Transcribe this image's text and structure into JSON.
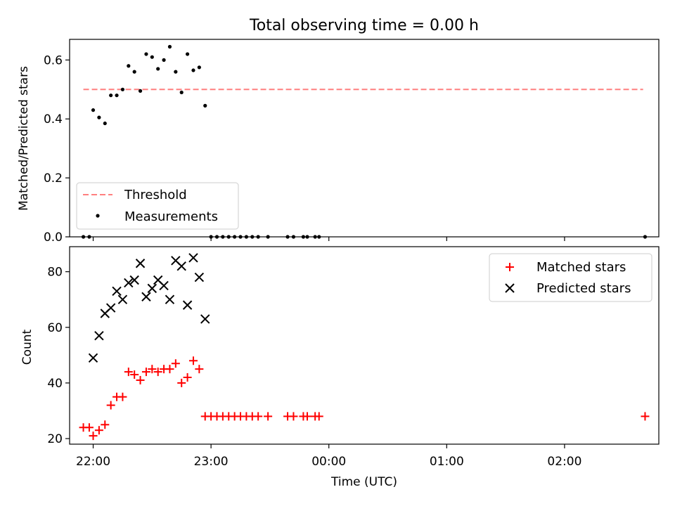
{
  "chart_data": [
    {
      "type": "scatter",
      "title": "Total observing time = 0.00 h",
      "ylabel": "Matched/Predicted stars",
      "xlabel": "",
      "xlim": [
        "21:48",
        "02:48"
      ],
      "ylim": [
        0,
        0.67
      ],
      "yticks": [
        0.0,
        0.2,
        0.4,
        0.6
      ],
      "ytick_labels": [
        "0.0",
        "0.2",
        "0.4",
        "0.6"
      ],
      "grid": false,
      "legend_position": "lower-left",
      "threshold": {
        "name": "Threshold",
        "value": 0.5,
        "x_start": "21:55",
        "x_end": "02:40",
        "color": "#ff7f7f"
      },
      "series": [
        {
          "name": "Measurements",
          "color": "#000000",
          "points": [
            [
              "21:55",
              0.0
            ],
            [
              "21:58",
              0.0
            ],
            [
              "22:00",
              0.43
            ],
            [
              "22:03",
              0.405
            ],
            [
              "22:06",
              0.385
            ],
            [
              "22:09",
              0.48
            ],
            [
              "22:12",
              0.48
            ],
            [
              "22:15",
              0.5
            ],
            [
              "22:18",
              0.58
            ],
            [
              "22:21",
              0.56
            ],
            [
              "22:24",
              0.495
            ],
            [
              "22:27",
              0.62
            ],
            [
              "22:30",
              0.61
            ],
            [
              "22:33",
              0.57
            ],
            [
              "22:36",
              0.6
            ],
            [
              "22:39",
              0.645
            ],
            [
              "22:42",
              0.56
            ],
            [
              "22:45",
              0.49
            ],
            [
              "22:48",
              0.62
            ],
            [
              "22:51",
              0.565
            ],
            [
              "22:54",
              0.575
            ],
            [
              "22:57",
              0.445
            ],
            [
              "23:00",
              0.0
            ],
            [
              "23:03",
              0.0
            ],
            [
              "23:06",
              0.0
            ],
            [
              "23:09",
              0.0
            ],
            [
              "23:12",
              0.0
            ],
            [
              "23:15",
              0.0
            ],
            [
              "23:18",
              0.0
            ],
            [
              "23:21",
              0.0
            ],
            [
              "23:24",
              0.0
            ],
            [
              "23:29",
              0.0
            ],
            [
              "23:39",
              0.0
            ],
            [
              "23:42",
              0.0
            ],
            [
              "23:47",
              0.0
            ],
            [
              "23:49",
              0.0
            ],
            [
              "23:53",
              0.0
            ],
            [
              "23:55",
              0.0
            ],
            [
              "02:41",
              0.0
            ]
          ]
        }
      ]
    },
    {
      "type": "scatter",
      "title": "",
      "ylabel": "Count",
      "xlabel": "Time (UTC)",
      "xlim": [
        "21:48",
        "02:48"
      ],
      "ylim": [
        18,
        89
      ],
      "yticks": [
        20,
        40,
        60,
        80
      ],
      "ytick_labels": [
        "20",
        "40",
        "60",
        "80"
      ],
      "xticks": [
        "22:00",
        "23:00",
        "00:00",
        "01:00",
        "02:00"
      ],
      "xtick_labels": [
        "22:00",
        "23:00",
        "00:00",
        "01:00",
        "02:00"
      ],
      "grid": false,
      "legend_position": "upper-right",
      "series": [
        {
          "name": "Matched stars",
          "color": "#ff0000",
          "marker": "+",
          "points": [
            [
              "21:55",
              24
            ],
            [
              "21:58",
              24
            ],
            [
              "22:00",
              21
            ],
            [
              "22:03",
              23
            ],
            [
              "22:06",
              25
            ],
            [
              "22:09",
              32
            ],
            [
              "22:12",
              35
            ],
            [
              "22:15",
              35
            ],
            [
              "22:18",
              44
            ],
            [
              "22:21",
              43
            ],
            [
              "22:24",
              41
            ],
            [
              "22:27",
              44
            ],
            [
              "22:30",
              45
            ],
            [
              "22:33",
              44
            ],
            [
              "22:36",
              45
            ],
            [
              "22:39",
              45
            ],
            [
              "22:42",
              47
            ],
            [
              "22:45",
              40
            ],
            [
              "22:48",
              42
            ],
            [
              "22:51",
              48
            ],
            [
              "22:54",
              45
            ],
            [
              "22:57",
              28
            ],
            [
              "23:00",
              28
            ],
            [
              "23:03",
              28
            ],
            [
              "23:06",
              28
            ],
            [
              "23:09",
              28
            ],
            [
              "23:12",
              28
            ],
            [
              "23:15",
              28
            ],
            [
              "23:18",
              28
            ],
            [
              "23:21",
              28
            ],
            [
              "23:24",
              28
            ],
            [
              "23:29",
              28
            ],
            [
              "23:39",
              28
            ],
            [
              "23:42",
              28
            ],
            [
              "23:47",
              28
            ],
            [
              "23:49",
              28
            ],
            [
              "23:53",
              28
            ],
            [
              "23:55",
              28
            ],
            [
              "02:41",
              28
            ]
          ]
        },
        {
          "name": "Predicted stars",
          "color": "#000000",
          "marker": "x",
          "points": [
            [
              "22:00",
              49
            ],
            [
              "22:03",
              57
            ],
            [
              "22:06",
              65
            ],
            [
              "22:09",
              67
            ],
            [
              "22:12",
              73
            ],
            [
              "22:15",
              70
            ],
            [
              "22:18",
              76
            ],
            [
              "22:21",
              77
            ],
            [
              "22:24",
              83
            ],
            [
              "22:27",
              71
            ],
            [
              "22:30",
              74
            ],
            [
              "22:33",
              77
            ],
            [
              "22:36",
              75
            ],
            [
              "22:39",
              70
            ],
            [
              "22:42",
              84
            ],
            [
              "22:45",
              82
            ],
            [
              "22:48",
              68
            ],
            [
              "22:51",
              85
            ],
            [
              "22:54",
              78
            ],
            [
              "22:57",
              63
            ]
          ]
        }
      ]
    }
  ]
}
